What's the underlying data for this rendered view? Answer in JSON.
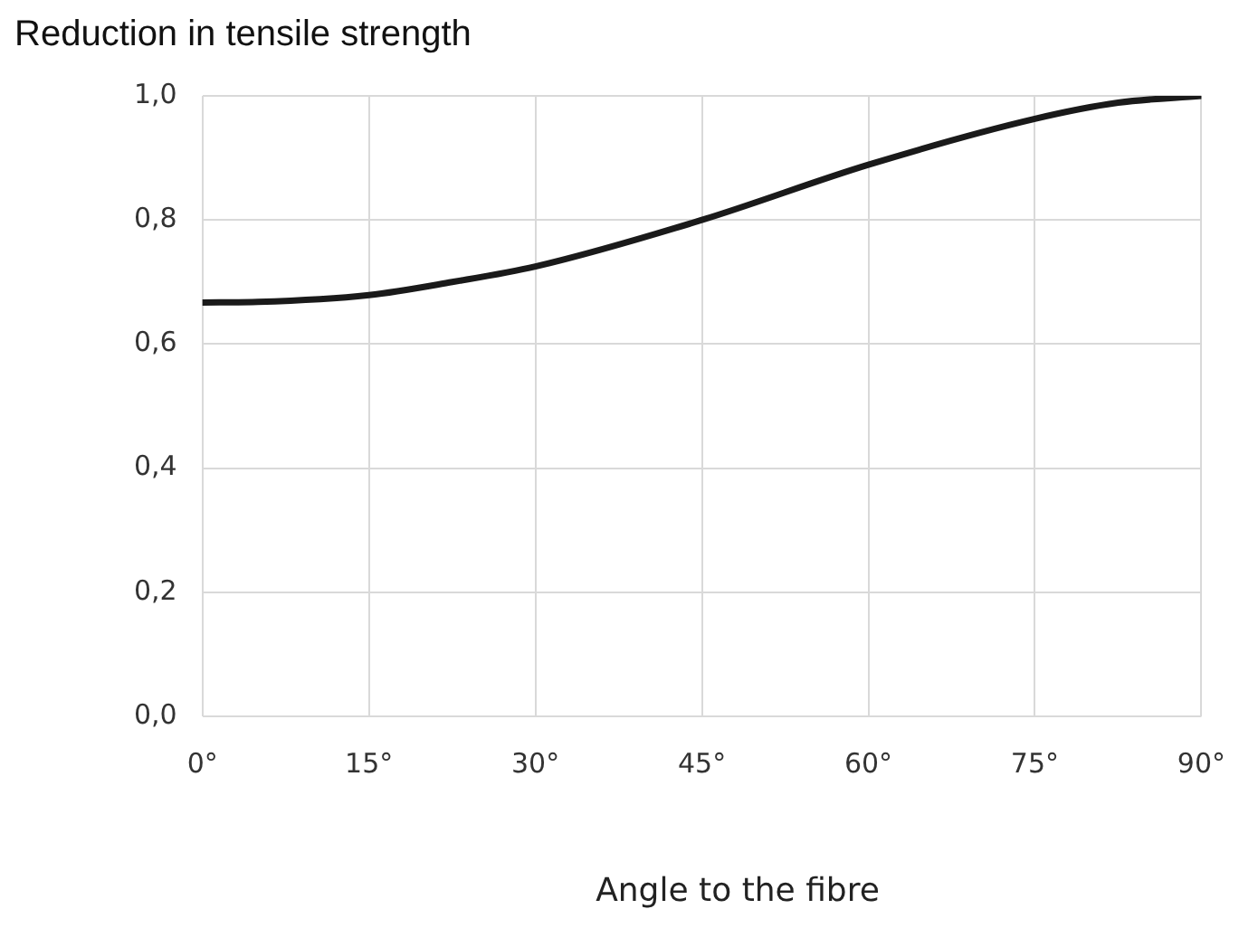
{
  "chart_data": {
    "type": "line",
    "title": "Reduction in tensile strength",
    "xlabel": "Angle to the fibre",
    "x": [
      0,
      5,
      15,
      22.5,
      30,
      45,
      60,
      75,
      82.5,
      90
    ],
    "series": [
      {
        "color": "#1a1a1a",
        "values": [
          0.667,
          0.668,
          0.679,
          0.7,
          0.725,
          0.8,
          0.889,
          0.963,
          0.989,
          1.0
        ]
      }
    ],
    "xlim": [
      0,
      90
    ],
    "xticks": [
      {
        "value": 0,
        "label": "0°"
      },
      {
        "value": 15,
        "label": "15°"
      },
      {
        "value": 30,
        "label": "30°"
      },
      {
        "value": 45,
        "label": "45°"
      },
      {
        "value": 60,
        "label": "60°"
      },
      {
        "value": 75,
        "label": "75°"
      },
      {
        "value": 90,
        "label": "90°"
      }
    ],
    "ylim": [
      0,
      1
    ],
    "yticks": [
      {
        "value": 0,
        "label": "0,0"
      },
      {
        "value": 0.2,
        "label": "0,2"
      },
      {
        "value": 0.4,
        "label": "0,4"
      },
      {
        "value": 0.6,
        "label": "0,6"
      },
      {
        "value": 0.8,
        "label": "0,8"
      },
      {
        "value": 1,
        "label": "1,0"
      }
    ],
    "grid": true,
    "legend": false,
    "marker": "none",
    "line_style": "solid"
  }
}
